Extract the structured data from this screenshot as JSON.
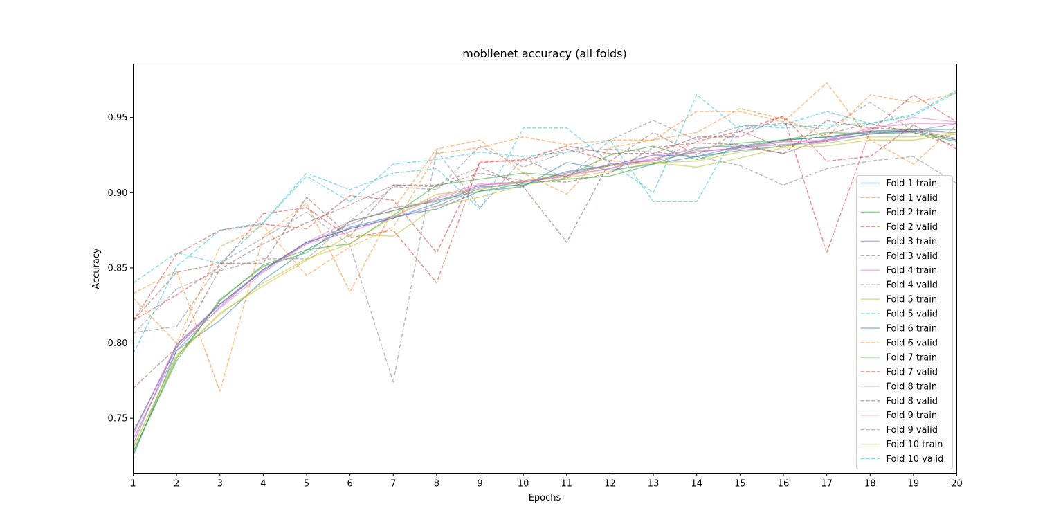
{
  "chart_data": {
    "type": "line",
    "title": "mobilenet accuracy (all folds)",
    "xlabel": "Epochs",
    "ylabel": "Accuracy",
    "xlim": [
      1,
      20
    ],
    "ylim": [
      0.7135,
      0.9855
    ],
    "x": [
      1,
      2,
      3,
      4,
      5,
      6,
      7,
      8,
      9,
      10,
      11,
      12,
      13,
      14,
      15,
      16,
      17,
      18,
      19,
      20
    ],
    "xticks": [
      "1",
      "2",
      "3",
      "4",
      "5",
      "6",
      "7",
      "8",
      "9",
      "10",
      "11",
      "12",
      "13",
      "14",
      "15",
      "16",
      "17",
      "18",
      "19",
      "20"
    ],
    "yticks": [
      {
        "value": 0.75,
        "label": "0.75"
      },
      {
        "value": 0.8,
        "label": "0.80"
      },
      {
        "value": 0.85,
        "label": "0.85"
      },
      {
        "value": 0.9,
        "label": "0.90"
      },
      {
        "value": 0.95,
        "label": "0.95"
      }
    ],
    "grid": false,
    "legend_position": "lower-right",
    "series": [
      {
        "name": "Fold 1 train",
        "color": "#1f77b4",
        "style": "solid",
        "values": [
          0.725,
          0.795,
          0.815,
          0.842,
          0.862,
          0.877,
          0.884,
          0.889,
          0.901,
          0.904,
          0.92,
          0.915,
          0.919,
          0.924,
          0.928,
          0.931,
          0.935,
          0.939,
          0.942,
          0.942
        ]
      },
      {
        "name": "Fold 1 valid",
        "color": "#ff7f0e",
        "style": "dashed",
        "values": [
          0.833,
          0.848,
          0.768,
          0.871,
          0.893,
          0.834,
          0.889,
          0.929,
          0.935,
          0.913,
          0.899,
          0.93,
          0.935,
          0.954,
          0.954,
          0.947,
          0.973,
          0.935,
          0.919,
          0.945
        ]
      },
      {
        "name": "Fold 2 train",
        "color": "#2ca02c",
        "style": "solid",
        "values": [
          0.727,
          0.79,
          0.828,
          0.852,
          0.862,
          0.866,
          0.885,
          0.905,
          0.909,
          0.913,
          0.911,
          0.925,
          0.931,
          0.922,
          0.93,
          0.935,
          0.937,
          0.941,
          0.942,
          0.94
        ]
      },
      {
        "name": "Fold 2 valid",
        "color": "#d62728",
        "style": "dashed",
        "values": [
          0.815,
          0.832,
          0.851,
          0.886,
          0.89,
          0.87,
          0.875,
          0.84,
          0.921,
          0.921,
          0.929,
          0.921,
          0.921,
          0.934,
          0.941,
          0.951,
          0.921,
          0.924,
          0.945,
          0.929
        ]
      },
      {
        "name": "Fold 3 train",
        "color": "#9467bd",
        "style": "solid",
        "values": [
          0.736,
          0.795,
          0.824,
          0.849,
          0.866,
          0.879,
          0.89,
          0.894,
          0.905,
          0.907,
          0.913,
          0.918,
          0.922,
          0.93,
          0.931,
          0.926,
          0.936,
          0.941,
          0.941,
          0.946
        ]
      },
      {
        "name": "Fold 3 valid",
        "color": "#8c564b",
        "style": "dashed",
        "values": [
          0.815,
          0.847,
          0.853,
          0.853,
          0.897,
          0.871,
          0.905,
          0.905,
          0.917,
          0.904,
          0.867,
          0.921,
          0.94,
          0.925,
          0.941,
          0.93,
          0.939,
          0.946,
          0.94,
          0.931
        ]
      },
      {
        "name": "Fold 4 train",
        "color": "#e377c2",
        "style": "solid",
        "values": [
          0.74,
          0.799,
          0.825,
          0.849,
          0.867,
          0.881,
          0.888,
          0.896,
          0.905,
          0.907,
          0.912,
          0.916,
          0.923,
          0.927,
          0.93,
          0.934,
          0.934,
          0.942,
          0.95,
          0.947
        ]
      },
      {
        "name": "Fold 4 valid",
        "color": "#7f7f7f",
        "style": "dashed",
        "values": [
          0.807,
          0.811,
          0.853,
          0.87,
          0.887,
          0.865,
          0.774,
          0.928,
          0.89,
          0.923,
          0.909,
          0.935,
          0.948,
          0.935,
          0.944,
          0.946,
          0.942,
          0.96,
          0.941,
          0.935
        ]
      },
      {
        "name": "Fold 5 train",
        "color": "#bcbd22",
        "style": "solid",
        "values": [
          0.731,
          0.791,
          0.82,
          0.838,
          0.855,
          0.872,
          0.871,
          0.891,
          0.897,
          0.905,
          0.91,
          0.914,
          0.92,
          0.917,
          0.923,
          0.93,
          0.931,
          0.935,
          0.935,
          0.939
        ]
      },
      {
        "name": "Fold 5 valid",
        "color": "#17becf",
        "style": "dashed",
        "values": [
          0.84,
          0.86,
          0.853,
          0.88,
          0.913,
          0.902,
          0.913,
          0.916,
          0.889,
          0.943,
          0.943,
          0.92,
          0.9,
          0.965,
          0.942,
          0.945,
          0.954,
          0.946,
          0.951,
          0.967
        ]
      },
      {
        "name": "Fold 6 train",
        "color": "#1f77b4",
        "style": "solid",
        "values": [
          0.741,
          0.797,
          0.826,
          0.848,
          0.867,
          0.876,
          0.883,
          0.893,
          0.904,
          0.905,
          0.914,
          0.918,
          0.925,
          0.924,
          0.931,
          0.935,
          0.937,
          0.94,
          0.941,
          0.935
        ]
      },
      {
        "name": "Fold 6 valid",
        "color": "#ff7f0e",
        "style": "dashed",
        "values": [
          0.83,
          0.8,
          0.864,
          0.878,
          0.845,
          0.864,
          0.877,
          0.926,
          0.93,
          0.937,
          0.932,
          0.935,
          0.935,
          0.94,
          0.956,
          0.949,
          0.937,
          0.965,
          0.96,
          0.966
        ]
      },
      {
        "name": "Fold 7 train",
        "color": "#2ca02c",
        "style": "solid",
        "values": [
          0.728,
          0.788,
          0.829,
          0.851,
          0.86,
          0.881,
          0.888,
          0.895,
          0.901,
          0.906,
          0.909,
          0.911,
          0.919,
          0.929,
          0.933,
          0.935,
          0.94,
          0.939,
          0.94,
          0.934
        ]
      },
      {
        "name": "Fold 7 valid",
        "color": "#d62728",
        "style": "dashed",
        "values": [
          0.815,
          0.859,
          0.875,
          0.879,
          0.876,
          0.898,
          0.895,
          0.86,
          0.92,
          0.922,
          0.931,
          0.926,
          0.926,
          0.937,
          0.937,
          0.951,
          0.86,
          0.941,
          0.965,
          0.947
        ]
      },
      {
        "name": "Fold 8 train",
        "color": "#9467bd",
        "style": "solid",
        "values": [
          0.733,
          0.799,
          0.826,
          0.849,
          0.867,
          0.876,
          0.883,
          0.891,
          0.903,
          0.907,
          0.911,
          0.919,
          0.921,
          0.927,
          0.93,
          0.932,
          0.934,
          0.939,
          0.941,
          0.94
        ]
      },
      {
        "name": "Fold 8 valid",
        "color": "#8c564b",
        "style": "dashed",
        "values": [
          0.77,
          0.797,
          0.849,
          0.866,
          0.88,
          0.892,
          0.905,
          0.904,
          0.913,
          0.908,
          0.907,
          0.913,
          0.93,
          0.933,
          0.932,
          0.926,
          0.948,
          0.943,
          0.942,
          0.936
        ]
      },
      {
        "name": "Fold 9 train",
        "color": "#e377c2",
        "style": "solid",
        "values": [
          0.739,
          0.799,
          0.823,
          0.847,
          0.866,
          0.874,
          0.884,
          0.897,
          0.906,
          0.907,
          0.911,
          0.916,
          0.925,
          0.928,
          0.929,
          0.934,
          0.935,
          0.943,
          0.946,
          0.946
        ]
      },
      {
        "name": "Fold 9 valid",
        "color": "#7f7f7f",
        "style": "dashed",
        "values": [
          0.806,
          0.836,
          0.848,
          0.856,
          0.856,
          0.881,
          0.904,
          0.902,
          0.931,
          0.917,
          0.927,
          0.929,
          0.927,
          0.924,
          0.918,
          0.905,
          0.916,
          0.921,
          0.924,
          0.906
        ]
      },
      {
        "name": "Fold 10 train",
        "color": "#bcbd22",
        "style": "solid",
        "values": [
          0.73,
          0.792,
          0.819,
          0.84,
          0.856,
          0.866,
          0.884,
          0.899,
          0.902,
          0.908,
          0.912,
          0.918,
          0.92,
          0.921,
          0.927,
          0.931,
          0.933,
          0.937,
          0.937,
          0.94
        ]
      },
      {
        "name": "Fold 10 valid",
        "color": "#17becf",
        "style": "dashed",
        "values": [
          0.793,
          0.851,
          0.875,
          0.88,
          0.911,
          0.894,
          0.919,
          0.922,
          0.927,
          0.924,
          0.927,
          0.935,
          0.894,
          0.894,
          0.945,
          0.943,
          0.945,
          0.946,
          0.952,
          0.968
        ]
      }
    ]
  }
}
